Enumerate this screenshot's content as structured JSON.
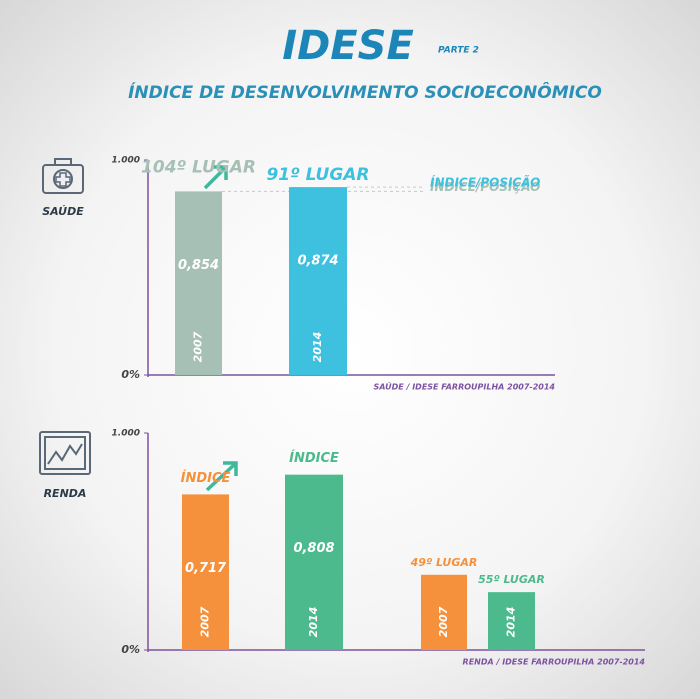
{
  "header": {
    "title": "IDESE",
    "tag": "PARTE 2",
    "subtitle": "ÍNDICE DE DESENVOLVIMENTO SOCIOECONÔMICO"
  },
  "chart_data": [
    {
      "type": "bar",
      "label": "SAÚDE",
      "categories": [
        "2007",
        "2014"
      ],
      "colors": [
        "#a6c0b6",
        "#3ec0df"
      ],
      "ylim": [
        0,
        1
      ],
      "yticks": [
        {
          "value": 0,
          "label": "0%"
        },
        {
          "value": 1,
          "label": "1.000"
        }
      ],
      "groups": [
        {
          "values": [
            0.854,
            0.874
          ],
          "value_labels": [
            "0,854",
            "0,874"
          ],
          "top_labels": [
            "104º LUGAR",
            "91º LUGAR"
          ]
        }
      ],
      "guides": [
        "ÍNDICE/POSIÇÃO",
        "ÍNDICE/POSIÇÃO"
      ],
      "source": "SAÚDE / IDESE FARROUPILHA 2007-2014"
    },
    {
      "type": "bar",
      "label": "RENDA",
      "categories": [
        "2007",
        "2014"
      ],
      "colors": [
        "#f5913c",
        "#4cba8c"
      ],
      "ylim": [
        0,
        1
      ],
      "yticks": [
        {
          "value": 0,
          "label": "0%"
        },
        {
          "value": 1,
          "label": "1.000"
        }
      ],
      "y2lim": [
        75,
        0
      ],
      "groups": [
        {
          "values": [
            0.717,
            0.808
          ],
          "value_labels": [
            "0,717",
            "0,808"
          ],
          "top_labels": [
            "ÍNDICE",
            "ÍNDICE"
          ]
        },
        {
          "values": [
            49,
            55
          ],
          "value_labels": [
            "49º LUGAR",
            "55º LUGAR"
          ],
          "axis": "y2"
        }
      ],
      "source": "RENDA / IDESE FARROUPILHA 2007-2014"
    }
  ]
}
